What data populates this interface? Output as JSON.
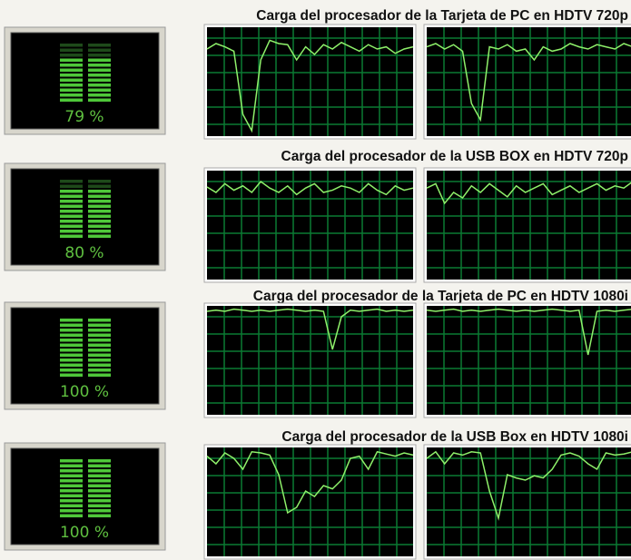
{
  "panels": [
    {
      "title": "Carga del procesador de la Tarjeta de PC en HDTV 720p",
      "usage": {
        "value": 79,
        "label": "79 %"
      },
      "graphs": [
        [
          80,
          85,
          82,
          78,
          20,
          5,
          70,
          88,
          85,
          84,
          70,
          82,
          75,
          84,
          80,
          86,
          82,
          78,
          84,
          80,
          82,
          76,
          80,
          82
        ],
        [
          82,
          85,
          80,
          84,
          78,
          30,
          15,
          82,
          80,
          84,
          78,
          80,
          70,
          82,
          78,
          80,
          85,
          82,
          80,
          84,
          82,
          80,
          85,
          82
        ]
      ]
    },
    {
      "title": "Carga del procesador de la USB BOX en HDTV 720p",
      "usage": {
        "value": 80,
        "label": "80 %"
      },
      "graphs": [
        [
          85,
          80,
          88,
          82,
          86,
          80,
          90,
          84,
          80,
          86,
          78,
          84,
          88,
          80,
          82,
          86,
          84,
          80,
          88,
          82,
          78,
          86,
          82,
          84
        ],
        [
          84,
          88,
          70,
          80,
          75,
          86,
          80,
          88,
          82,
          76,
          86,
          80,
          84,
          88,
          78,
          82,
          86,
          80,
          84,
          88,
          82,
          86,
          84,
          90
        ]
      ]
    },
    {
      "title": "Carga del procesador de la Tarjeta de PC en HDTV 1080i",
      "usage": {
        "value": 100,
        "label": "100 %"
      },
      "graphs": [
        [
          95,
          96,
          95,
          97,
          96,
          95,
          96,
          95,
          96,
          97,
          96,
          95,
          96,
          95,
          60,
          90,
          96,
          95,
          96,
          97,
          95,
          96,
          95,
          96
        ],
        [
          96,
          95,
          96,
          97,
          95,
          96,
          95,
          96,
          97,
          96,
          95,
          96,
          95,
          96,
          97,
          96,
          95,
          96,
          55,
          95,
          96,
          95,
          96,
          97
        ]
      ]
    },
    {
      "title": "Carga del procesador de la USB Box en HDTV 1080i",
      "usage": {
        "value": 100,
        "label": "100 %"
      },
      "graphs": [
        [
          92,
          85,
          95,
          90,
          80,
          96,
          95,
          93,
          75,
          40,
          45,
          60,
          55,
          65,
          62,
          70,
          90,
          92,
          80,
          96,
          94,
          92,
          95,
          93
        ],
        [
          90,
          96,
          85,
          95,
          93,
          96,
          95,
          60,
          35,
          75,
          72,
          70,
          74,
          72,
          80,
          93,
          95,
          92,
          85,
          80,
          95,
          93,
          94,
          96
        ]
      ]
    }
  ]
}
